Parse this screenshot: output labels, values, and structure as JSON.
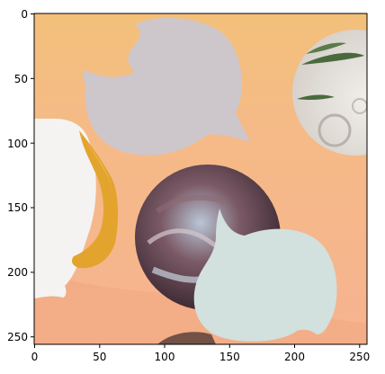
{
  "figure": {
    "x_ticks": [
      "0",
      "50",
      "100",
      "150",
      "200",
      "250"
    ],
    "y_ticks": [
      "0",
      "50",
      "100",
      "150",
      "200",
      "250"
    ]
  },
  "colors": {
    "background": "#f6b98f",
    "top_band": "#f3c07a",
    "grey_blob": "#cdc7cc",
    "white_blob": "#f4f3f1",
    "swirl_dark": "#5b3c44",
    "swirl_light": "#a9b6c8",
    "pale_blue_blob": "#d2e0de",
    "plant_bg": "#e6e2dc",
    "plant_leaf": "#4a6a3e",
    "gold_shape": "#e3a42e"
  }
}
